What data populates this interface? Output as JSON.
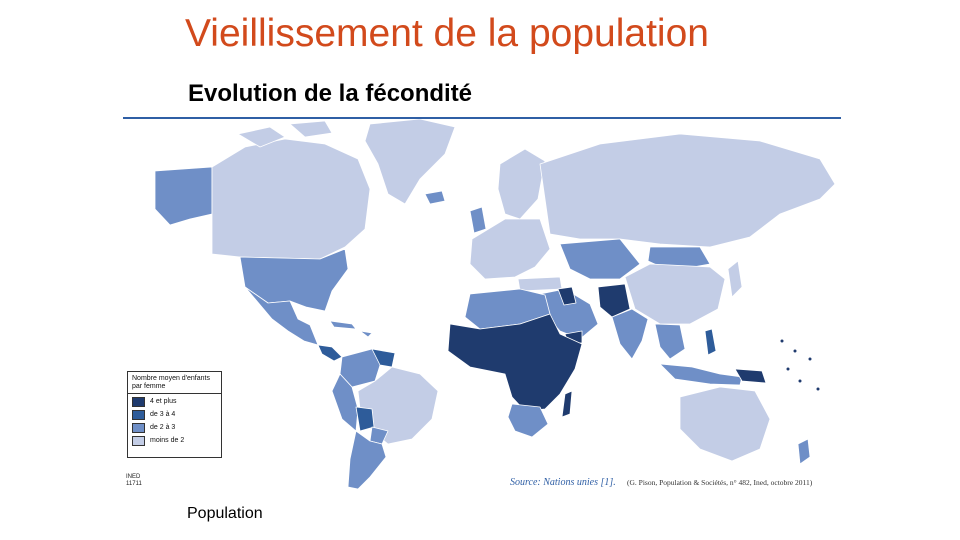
{
  "slide": {
    "title": "Vieillissement de la population",
    "subtitle": "Evolution de la fécondité",
    "footer": "Population"
  },
  "map": {
    "legend": {
      "title": "Nombre moyen d'enfants par femme",
      "items": [
        {
          "label": "4 et plus",
          "color": "#1f3b6e"
        },
        {
          "label": "de 3 à 4",
          "color": "#2e5c9a"
        },
        {
          "label": "de 2 à 3",
          "color": "#6f8fc7"
        },
        {
          "label": "moins de 2",
          "color": "#c3cde6"
        }
      ]
    },
    "ined_label": "INED 11711",
    "source": "Source: Nations unies [1].",
    "credit": "(G. Pison, Population & Sociétés, n° 482, Ined, octobre 2011)"
  }
}
